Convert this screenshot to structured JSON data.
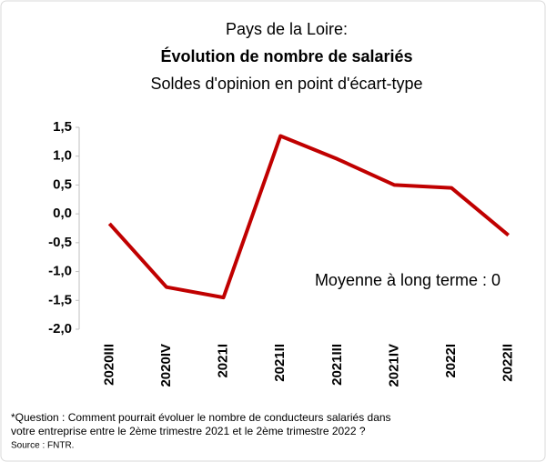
{
  "chart_data": {
    "type": "line",
    "title": "Pays de la Loire:",
    "subtitle": "Évolution de nombre de salariés",
    "subtitle2": "Soldes d'opinion en point d'écart-type",
    "annotation": "Moyenne à long terme : 0",
    "footnote": [
      "*Question : Comment pourrait évoluer le nombre de conducteurs salariés dans",
      "votre entreprise entre le 2ème trimestre 2021 et le 2ème trimestre 2022 ?"
    ],
    "source": "Source : FNTR.",
    "categories": [
      "2020III",
      "2020IV",
      "2021I",
      "2021II",
      "2021III",
      "2021IV",
      "2022I",
      "2022II"
    ],
    "series": [
      {
        "name": "Pays de la Loire",
        "color": "#c00000",
        "values": [
          -0.17,
          -1.27,
          -1.45,
          1.35,
          0.95,
          0.5,
          0.45,
          -0.37
        ]
      }
    ],
    "ylim": [
      -2.0,
      1.5
    ],
    "yticks": [
      {
        "value": 1.5,
        "label": "1,5"
      },
      {
        "value": 1.0,
        "label": "1,0"
      },
      {
        "value": 0.5,
        "label": "0,5"
      },
      {
        "value": 0.0,
        "label": "0,0"
      },
      {
        "value": -0.5,
        "label": "-0,5"
      },
      {
        "value": -1.0,
        "label": "-1,0"
      },
      {
        "value": -1.5,
        "label": "-1,5"
      },
      {
        "value": -2.0,
        "label": "-2,0"
      }
    ],
    "grid": false
  }
}
